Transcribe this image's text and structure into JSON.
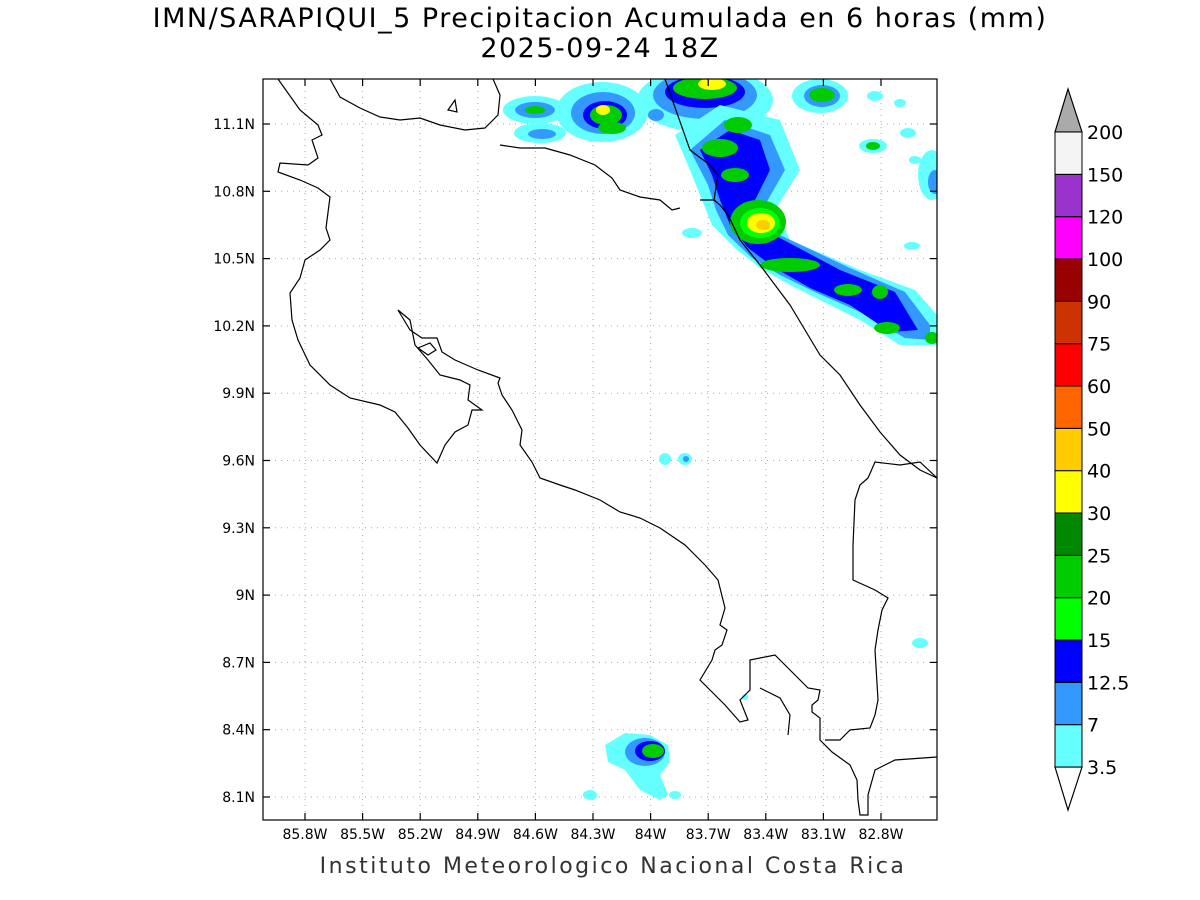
{
  "title": {
    "line1": "IMN/SARAPIQUI_5 Precipitacion Acumulada en 6 horas (mm)",
    "line2": "2025-09-24 18Z"
  },
  "footer": "Instituto Meteorologico Nacional Costa Rica",
  "axes": {
    "lat_ticks": [
      "11.1N",
      "10.8N",
      "10.5N",
      "10.2N",
      "9.9N",
      "9.6N",
      "9.3N",
      "9N",
      "8.7N",
      "8.4N",
      "8.1N"
    ],
    "lon_ticks": [
      "85.8W",
      "85.5W",
      "85.2W",
      "84.9W",
      "84.6W",
      "84.3W",
      "84W",
      "83.7W",
      "83.4W",
      "83.1W",
      "82.8W"
    ]
  },
  "colorbar": {
    "labels": [
      "3.5",
      "7",
      "12.5",
      "15",
      "20",
      "25",
      "30",
      "40",
      "50",
      "60",
      "75",
      "90",
      "100",
      "120",
      "150",
      "200"
    ],
    "colors_bottom_to_top": [
      "#66ffff",
      "#3399ff",
      "#0000ff",
      "#00ff00",
      "#00cc00",
      "#008800",
      "#ffff00",
      "#ffcc00",
      "#ff6600",
      "#ff0000",
      "#cc3300",
      "#990000",
      "#ff00ff",
      "#9933cc",
      "#f4f4f4"
    ],
    "overflow_color": "#aaaaaa"
  }
}
